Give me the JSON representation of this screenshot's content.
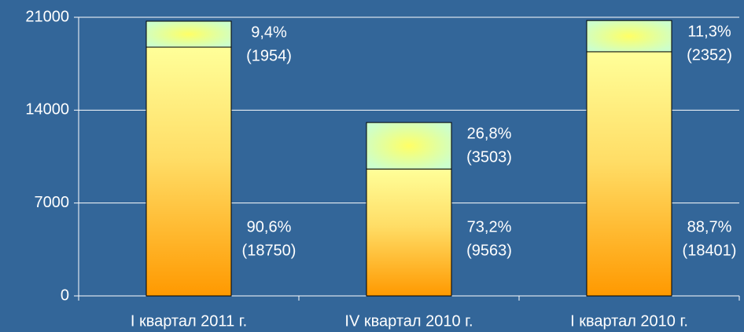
{
  "chart_data": {
    "type": "stacked_bar",
    "categories": [
      "I квартал 2011 г.",
      "IV квартал 2010 г.",
      "I квартал 2010 г."
    ],
    "series": [
      {
        "values": [
          18750,
          9563,
          18401
        ],
        "value_labels": [
          "(18750)",
          "(9563)",
          "(18401)"
        ],
        "share_labels": [
          "90,6%",
          "73,2%",
          "88,7%"
        ]
      },
      {
        "values": [
          1954,
          3503,
          2352
        ],
        "value_labels": [
          "(1954)",
          "(3503)",
          "(2352)"
        ],
        "share_labels": [
          "9,4%",
          "26,8%",
          "11,3%"
        ]
      }
    ],
    "ylim": [
      0,
      21000
    ],
    "yticks": [
      0,
      7000,
      14000,
      21000
    ],
    "grid": true
  }
}
